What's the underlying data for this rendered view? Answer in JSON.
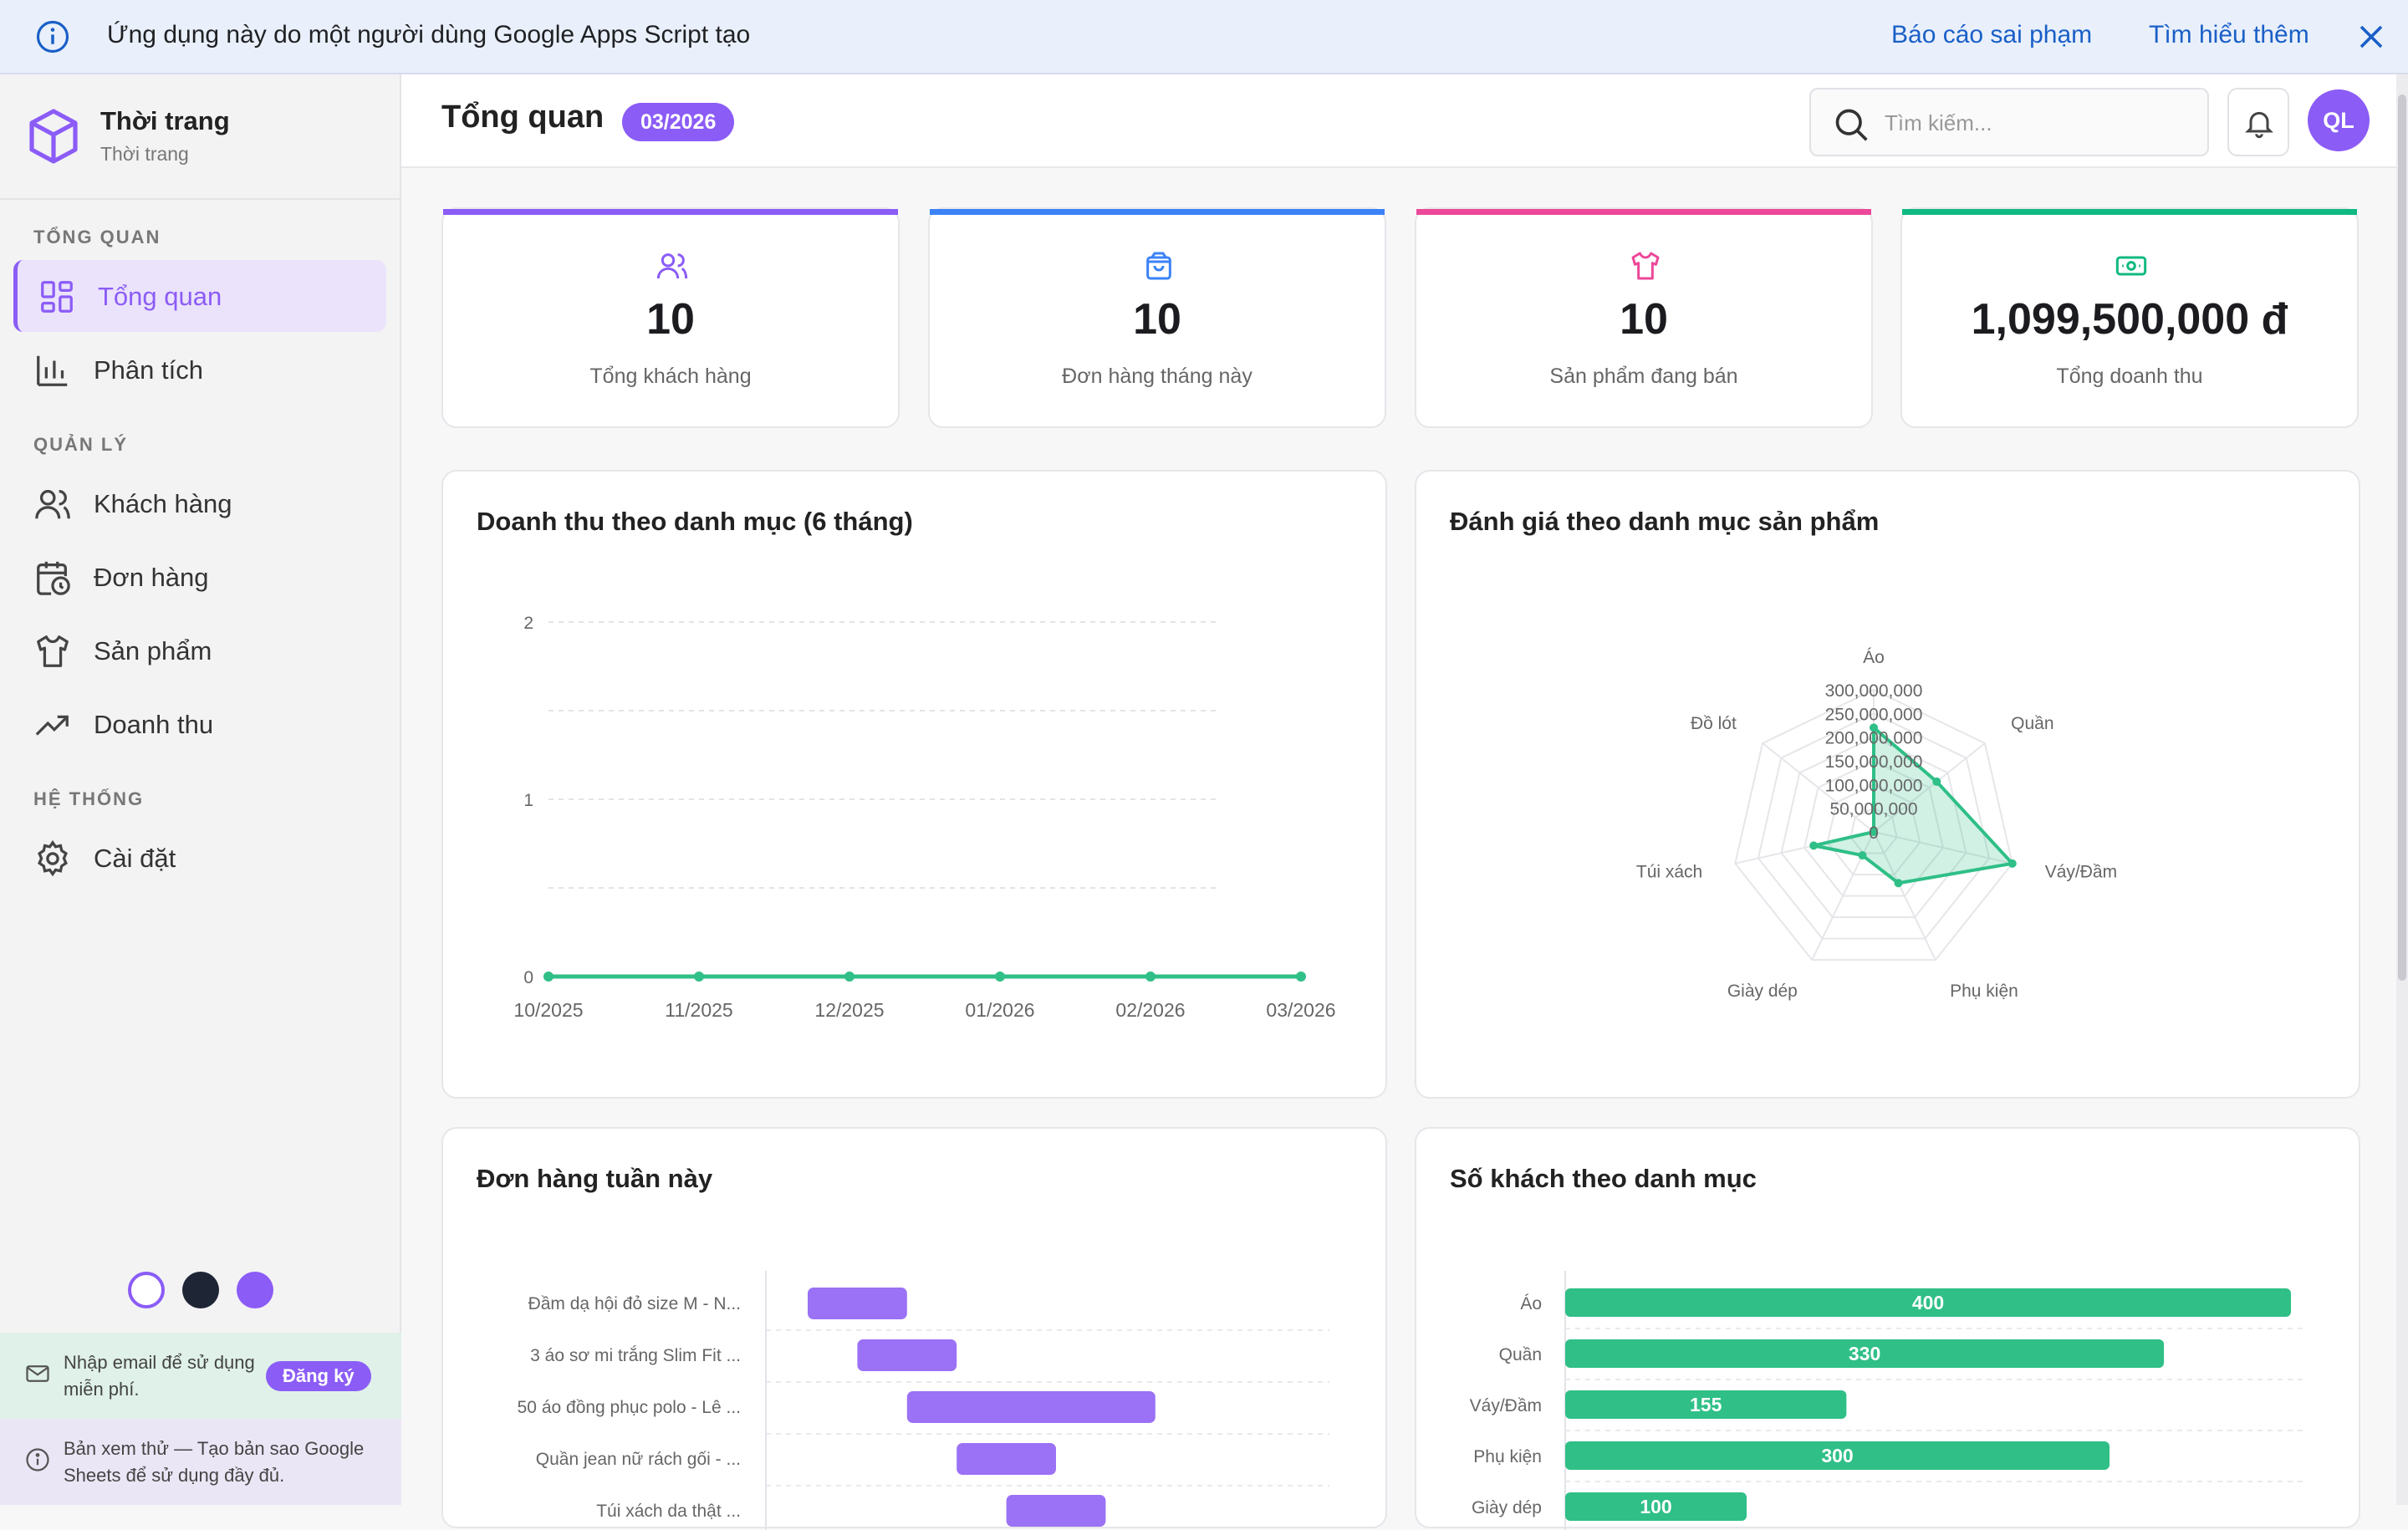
{
  "banner": {
    "text": "Ứng dụng này do một người dùng Google Apps Script tạo",
    "report_link": "Báo cáo sai phạm",
    "learn_more_link": "Tìm hiểu thêm"
  },
  "brand": {
    "name": "Thời trang",
    "subtitle": "Thời trang"
  },
  "sidebar": {
    "sections": [
      {
        "title": "TỔNG QUAN",
        "items": [
          {
            "label": "Tổng quan",
            "icon": "dashboard-grid-icon",
            "active": true
          },
          {
            "label": "Phân tích",
            "icon": "bar-chart-icon",
            "active": false
          }
        ]
      },
      {
        "title": "QUẢN LÝ",
        "items": [
          {
            "label": "Khách hàng",
            "icon": "users-icon",
            "active": false
          },
          {
            "label": "Đơn hàng",
            "icon": "calendar-clock-icon",
            "active": false
          },
          {
            "label": "Sản phẩm",
            "icon": "shirt-icon",
            "active": false
          },
          {
            "label": "Doanh thu",
            "icon": "trending-up-icon",
            "active": false
          }
        ]
      },
      {
        "title": "HỆ THỐNG",
        "items": [
          {
            "label": "Cài đặt",
            "icon": "gear-icon",
            "active": false
          }
        ]
      }
    ],
    "theme_colors": [
      "#ffffff",
      "#1e2535",
      "#8b5cf6"
    ],
    "signup_text": "Nhập email để sử dụng miễn phí.",
    "signup_button": "Đăng ký",
    "preview_text": "Bản xem thử — Tạo bản sao Google Sheets để sử dụng đầy đủ."
  },
  "header": {
    "title": "Tổng quan",
    "period": "03/2026",
    "search_placeholder": "Tìm kiếm...",
    "avatar_initials": "QL"
  },
  "stats": [
    {
      "value": "10",
      "label": "Tổng khách hàng",
      "icon": "users-icon",
      "color": "#8b5cf6"
    },
    {
      "value": "10",
      "label": "Đơn hàng tháng này",
      "icon": "shopping-bag-icon",
      "color": "#3b82f6"
    },
    {
      "value": "10",
      "label": "Sản phẩm đang bán",
      "icon": "shirt-icon",
      "color": "#ec4899"
    },
    {
      "value": "1,099,500,000 đ",
      "label": "Tổng doanh thu",
      "icon": "cash-icon",
      "color": "#10b981"
    }
  ],
  "colors": {
    "accent": "#8b5cf6",
    "green": "#2fbf87",
    "purple_bar": "#9b71f5"
  },
  "chart_data": [
    {
      "type": "line",
      "title": "Doanh thu theo danh mục (6 tháng)",
      "x": [
        "10/2025",
        "11/2025",
        "12/2025",
        "01/2026",
        "02/2026",
        "03/2026"
      ],
      "series": [
        {
          "values": [
            0,
            0,
            0,
            0,
            0,
            0
          ]
        }
      ],
      "ylim": [
        0,
        2
      ],
      "yticks": [
        "0",
        "1",
        "2"
      ],
      "grid": true
    },
    {
      "type": "radar",
      "title": "Đánh giá theo danh mục sản phẩm",
      "categories": [
        "Áo",
        "Quần",
        "Váy/Đầm",
        "Phụ kiện",
        "Giày dép",
        "Túi xách",
        "Đồ lót"
      ],
      "series": [
        {
          "values": [
            220000000,
            170000000,
            300000000,
            120000000,
            55000000,
            130000000,
            0
          ]
        }
      ],
      "ylim": [
        0,
        300000000
      ],
      "ticks": [
        "0",
        "50,000,000",
        "100,000,000",
        "150,000,000",
        "200,000,000",
        "250,000,000",
        "300,000,000"
      ]
    },
    {
      "type": "bar",
      "orientation": "horizontal-range",
      "title": "Đơn hàng tuần này",
      "categories": [
        "Đầm dạ hội đỏ size M - N...",
        "3 áo sơ mi trắng Slim Fit ...",
        "50 áo đồng phục polo - Lê ...",
        "Quần jean nữ rách gối - ...",
        "Túi xách da thật ..."
      ],
      "series": [
        {
          "ranges": [
            [
              0.0,
              0.9
            ],
            [
              0.45,
              1.35
            ],
            [
              0.9,
              3.15
            ],
            [
              1.35,
              2.25
            ],
            [
              1.8,
              2.7
            ]
          ]
        }
      ]
    },
    {
      "type": "bar",
      "orientation": "horizontal",
      "title": "Số khách theo danh mục",
      "categories": [
        "Áo",
        "Quần",
        "Váy/Đầm",
        "Phụ kiện",
        "Giày dép"
      ],
      "values": [
        400,
        330,
        155,
        300,
        100
      ],
      "value_labels": [
        "400",
        "330",
        "155",
        "300",
        "100"
      ],
      "xlim": [
        0,
        400
      ]
    }
  ]
}
